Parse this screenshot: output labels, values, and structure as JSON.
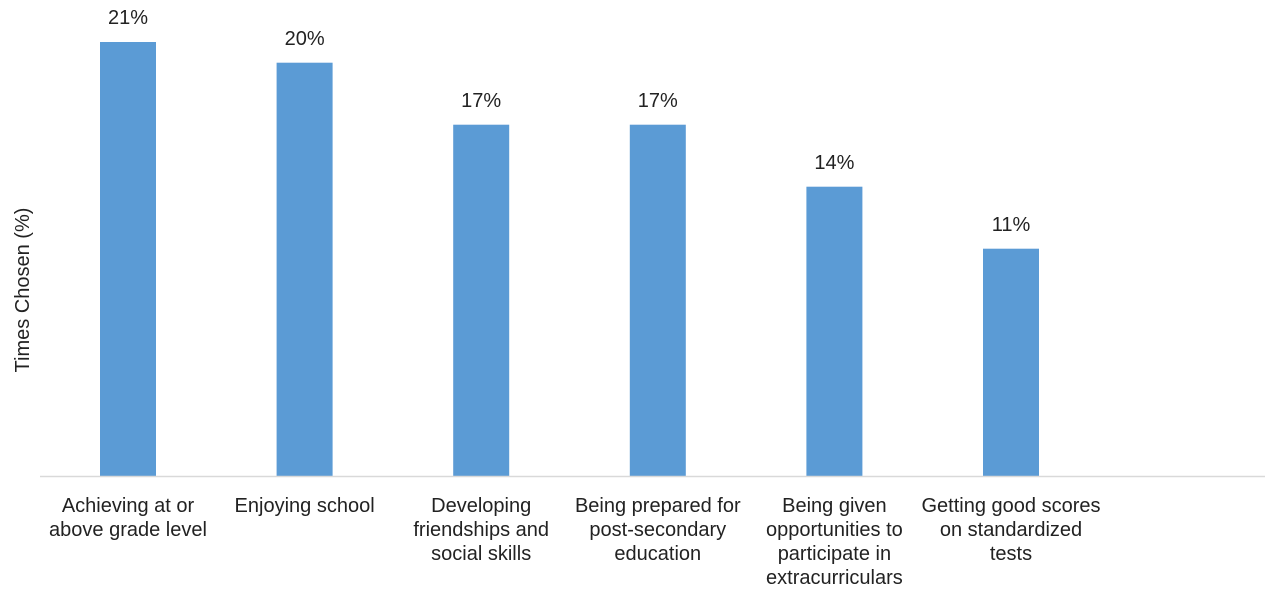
{
  "chart_data": {
    "type": "bar",
    "title": "",
    "xlabel": "",
    "ylabel": "Times Chosen (%)",
    "categories": [
      "Achieving at or above grade level",
      "Enjoying school",
      "Developing friendships and social skills",
      "Being prepared for post-secondary education",
      "Being given opportunities to participate in extracurriculars",
      "Getting good scores on standardized tests"
    ],
    "values": [
      21,
      20,
      17,
      17,
      14,
      11
    ],
    "data_labels": [
      "21%",
      "20%",
      "17%",
      "17%",
      "14%",
      "11%"
    ],
    "ylim": [
      0,
      21
    ],
    "grid": false,
    "legend": "none",
    "bar_color": "#5b9bd5",
    "axis_color": "#d9d9d9"
  }
}
